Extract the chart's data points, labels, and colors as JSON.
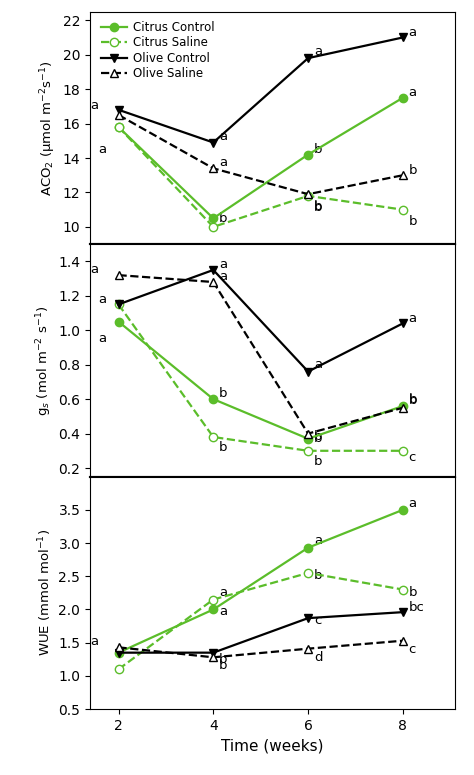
{
  "x": [
    2,
    4,
    6,
    8
  ],
  "panel1": {
    "ylabel": "ACO$_2$ (μmol m$^{-2}$s$^{-1}$)",
    "ylim": [
      9.0,
      22.5
    ],
    "yticks": [
      10,
      12,
      14,
      16,
      18,
      20,
      22
    ],
    "citrus_control": [
      15.8,
      10.5,
      14.2,
      17.5
    ],
    "citrus_saline": [
      15.8,
      10.0,
      11.8,
      11.0
    ],
    "olive_control": [
      16.8,
      14.9,
      19.8,
      21.0
    ],
    "olive_saline": [
      16.5,
      13.4,
      11.9,
      13.0
    ]
  },
  "panel2": {
    "ylabel": "g$_s$ (mol m$^{-2}$ s$^{-1}$)",
    "ylim": [
      0.15,
      1.5
    ],
    "yticks": [
      0.2,
      0.4,
      0.6,
      0.8,
      1.0,
      1.2,
      1.4
    ],
    "citrus_control": [
      1.05,
      0.6,
      0.37,
      0.56
    ],
    "citrus_saline": [
      1.15,
      0.38,
      0.3,
      0.3
    ],
    "olive_control": [
      1.15,
      1.35,
      0.76,
      1.04
    ],
    "olive_saline": [
      1.32,
      1.28,
      0.4,
      0.55
    ]
  },
  "panel3": {
    "ylabel": "WUE (mmol mol$^{-1}$)",
    "ylim": [
      0.5,
      4.0
    ],
    "yticks": [
      0.5,
      1.0,
      1.5,
      2.0,
      2.5,
      3.0,
      3.5
    ],
    "citrus_control": [
      1.35,
      2.0,
      2.93,
      3.5
    ],
    "citrus_saline": [
      1.1,
      2.15,
      2.55,
      2.3
    ],
    "olive_control": [
      1.35,
      1.35,
      1.87,
      1.96
    ],
    "olive_saline": [
      1.43,
      1.28,
      1.41,
      1.53
    ]
  },
  "green": "#5BBD2A",
  "black": "#000000",
  "xlabel": "Time (weeks)",
  "legend_labels": [
    "Citrus Control",
    "Citrus Saline",
    "Olive Control",
    "Olive Saline"
  ]
}
